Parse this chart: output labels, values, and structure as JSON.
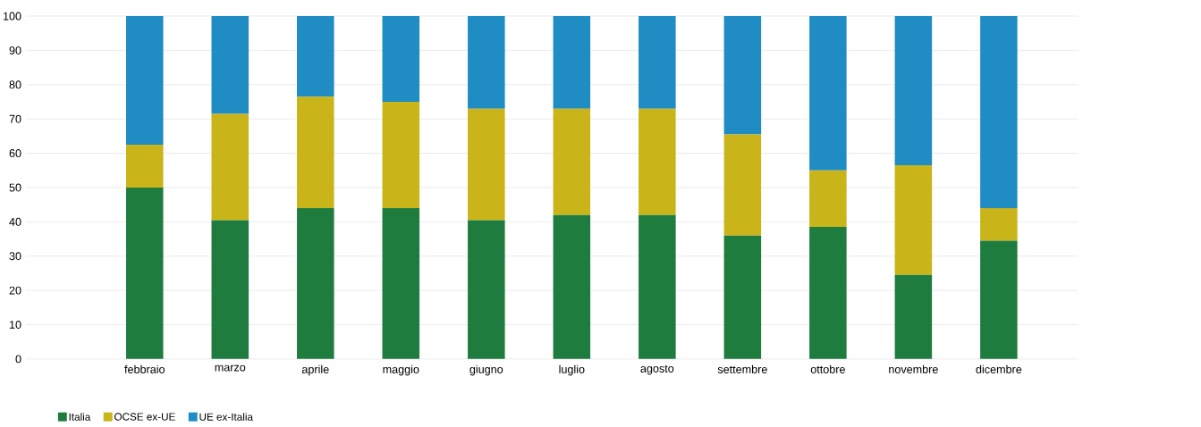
{
  "chart_data": {
    "type": "bar",
    "stacked": true,
    "categories": [
      "febbraio",
      "marzo",
      "aprile",
      "maggio",
      "giugno",
      "luglio",
      "agosto",
      "settembre",
      "ottobre",
      "novembre",
      "dicembre"
    ],
    "series": [
      {
        "name": "Italia",
        "color": "#1e7d3e",
        "values": [
          50,
          40.5,
          44,
          44,
          40.5,
          42,
          42,
          36,
          38.5,
          24.5,
          34.5
        ]
      },
      {
        "name": "OCSE ex-UE",
        "color": "#c9b41a",
        "values": [
          12.5,
          31,
          32.5,
          31,
          32.5,
          31,
          31,
          29.5,
          16.5,
          32,
          9.5
        ]
      },
      {
        "name": "UE ex-Italia",
        "color": "#1f8cc4",
        "values": [
          37.5,
          28.5,
          23.5,
          25,
          27,
          27,
          27,
          34.5,
          45,
          43.5,
          56
        ]
      }
    ],
    "ylim": [
      0,
      100
    ],
    "yticks": [
      0,
      10,
      20,
      30,
      40,
      50,
      60,
      70,
      80,
      90,
      100
    ],
    "grid": "y",
    "legend": "bottom left"
  }
}
